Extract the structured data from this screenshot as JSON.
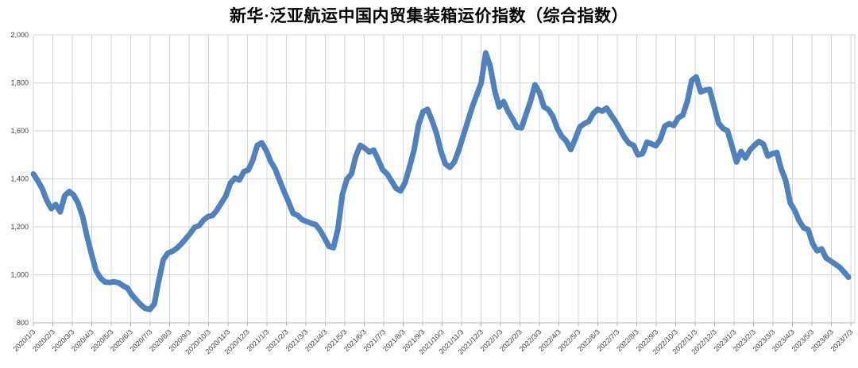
{
  "chart_data": {
    "type": "line",
    "title": "新华·泛亚航运中国内贸集装箱运价指数（综合指数）",
    "x_axis": {
      "start": "2020/1/3",
      "end": "2023/6/30",
      "frequency": "weekly",
      "tick_labels": [
        "2020/1/3",
        "2020/2/3",
        "2020/3/3",
        "2020/4/3",
        "2020/5/3",
        "2020/6/3",
        "2020/7/3",
        "2020/8/3",
        "2020/9/3",
        "2020/10/3",
        "2020/11/3",
        "2020/12/3",
        "2021/1/3",
        "2021/2/3",
        "2021/3/3",
        "2021/4/3",
        "2021/5/3",
        "2021/6/3",
        "2021/7/3",
        "2021/8/3",
        "2021/9/3",
        "2021/10/3",
        "2021/11/3",
        "2021/12/3",
        "2022/1/3",
        "2022/2/3",
        "2022/3/3",
        "2022/4/3",
        "2022/5/3",
        "2022/6/3",
        "2022/7/3",
        "2022/8/3",
        "2022/9/3",
        "2022/10/3",
        "2022/11/3",
        "2022/12/3",
        "2023/1/3",
        "2023/2/3",
        "2023/3/3",
        "2023/4/3",
        "2023/5/3",
        "2023/6/3",
        "2023/7/3"
      ]
    },
    "y_axis": {
      "min": 800,
      "max": 2000,
      "tick_values": [
        2000,
        1800,
        1600,
        1400,
        1200,
        1000,
        800
      ],
      "tick_labels": [
        "2,000",
        "1,800",
        "1,600",
        "1,400",
        "1,200",
        "1,000",
        "800"
      ]
    },
    "grid": true,
    "legend": "none",
    "series": [
      {
        "name": "综合指数",
        "color": "#4F81BD",
        "values": [
          1420,
          1392,
          1358,
          1310,
          1276,
          1293,
          1262,
          1330,
          1347,
          1333,
          1298,
          1243,
          1160,
          1085,
          1018,
          986,
          970,
          968,
          971,
          967,
          955,
          945,
          916,
          895,
          875,
          860,
          856,
          878,
          975,
          1062,
          1090,
          1098,
          1110,
          1128,
          1150,
          1172,
          1198,
          1205,
          1228,
          1243,
          1247,
          1270,
          1300,
          1330,
          1382,
          1403,
          1395,
          1430,
          1437,
          1478,
          1540,
          1550,
          1518,
          1472,
          1441,
          1392,
          1346,
          1303,
          1256,
          1248,
          1230,
          1222,
          1215,
          1210,
          1186,
          1154,
          1118,
          1113,
          1190,
          1335,
          1398,
          1420,
          1495,
          1540,
          1528,
          1512,
          1520,
          1480,
          1438,
          1420,
          1390,
          1360,
          1350,
          1385,
          1450,
          1520,
          1625,
          1680,
          1690,
          1645,
          1590,
          1515,
          1462,
          1448,
          1470,
          1520,
          1580,
          1640,
          1700,
          1750,
          1800,
          1925,
          1870,
          1770,
          1700,
          1722,
          1680,
          1650,
          1615,
          1613,
          1669,
          1722,
          1792,
          1760,
          1700,
          1689,
          1660,
          1610,
          1577,
          1558,
          1522,
          1567,
          1616,
          1630,
          1639,
          1672,
          1690,
          1682,
          1695,
          1666,
          1639,
          1606,
          1573,
          1548,
          1540,
          1500,
          1505,
          1553,
          1546,
          1538,
          1565,
          1620,
          1630,
          1622,
          1655,
          1665,
          1722,
          1810,
          1825,
          1762,
          1770,
          1773,
          1702,
          1632,
          1610,
          1600,
          1536,
          1470,
          1514,
          1487,
          1520,
          1540,
          1556,
          1545,
          1495,
          1505,
          1510,
          1441,
          1392,
          1300,
          1268,
          1225,
          1196,
          1188,
          1130,
          1100,
          1108,
          1070,
          1058,
          1045,
          1032,
          1012,
          990
        ]
      }
    ],
    "observed_extremes": {
      "start_value": 1420,
      "low_2020_jun": 856,
      "peak_2020_dec": 1550,
      "trough_2021_apr": 1113,
      "peak_2021_oct": 1690,
      "peak_2021_dec": 1925,
      "peak_2022_apr": 1792,
      "trough_2022_may": 1522,
      "peak_2022_dec": 1825,
      "end_value": 990
    }
  },
  "style": {
    "line_color": "#4F81BD",
    "gridline_color": "#D5D5D5",
    "axis_color": "#B5B5B5",
    "label_color": "#3f3f3f",
    "background": "#FFFFFF"
  }
}
